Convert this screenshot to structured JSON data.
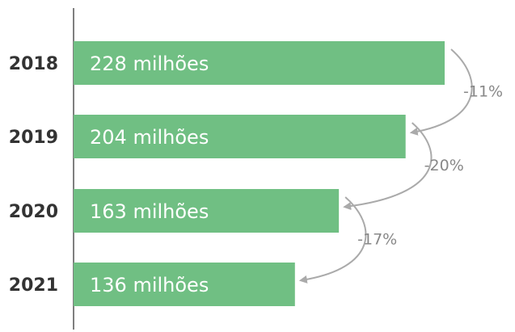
{
  "chart_data": {
    "type": "bar",
    "orientation": "horizontal",
    "categories": [
      "2018",
      "2019",
      "2020",
      "2021"
    ],
    "values": [
      228,
      204,
      163,
      136
    ],
    "value_labels": [
      "228 milhões",
      "204 milhões",
      "163 milhões",
      "136 milhões"
    ],
    "changes": [
      "-11%",
      "-20%",
      "-17%"
    ],
    "colors": {
      "bar": "#70bf83",
      "bar_label": "#ffffff",
      "category_label": "#333333",
      "axis": "#555555",
      "arrow": "#aaaaaa",
      "change_label": "#888888"
    },
    "grid": false,
    "legend": "none"
  }
}
